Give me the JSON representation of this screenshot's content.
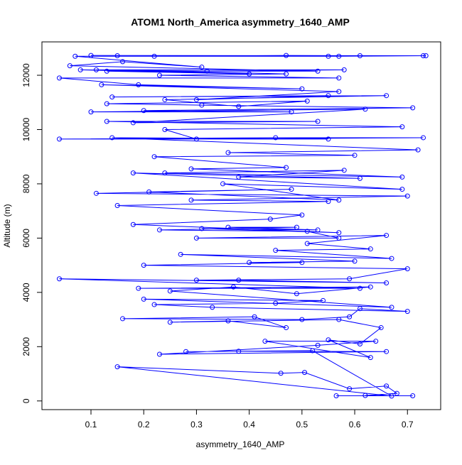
{
  "chart_data": {
    "type": "line",
    "markers": true,
    "title": "ATOM1 North_America asymmetry_1640_AMP",
    "xlabel": "asymmetry_1640_AMP",
    "ylabel": "Altitude (m)",
    "color": "#0000ff",
    "xlim": [
      0.007,
      0.763
    ],
    "ylim": [
      -320,
      13230
    ],
    "xticks": [
      0.1,
      0.2,
      0.3,
      0.4,
      0.5,
      0.6,
      0.7
    ],
    "yticks": [
      0,
      2000,
      4000,
      6000,
      8000,
      10000,
      12000
    ],
    "x": [
      0.565,
      0.71,
      0.62,
      0.68,
      0.66,
      0.59,
      0.505,
      0.46,
      0.15,
      0.67,
      0.52,
      0.28,
      0.38,
      0.66,
      0.23,
      0.53,
      0.64,
      0.43,
      0.63,
      0.55,
      0.61,
      0.65,
      0.57,
      0.25,
      0.36,
      0.47,
      0.41,
      0.16,
      0.5,
      0.59,
      0.61,
      0.7,
      0.33,
      0.22,
      0.45,
      0.54,
      0.2,
      0.67,
      0.25,
      0.37,
      0.49,
      0.63,
      0.19,
      0.61,
      0.04,
      0.66,
      0.38,
      0.3,
      0.59,
      0.7,
      0.2,
      0.5,
      0.4,
      0.6,
      0.27,
      0.67,
      0.45,
      0.63,
      0.51,
      0.66,
      0.3,
      0.57,
      0.51,
      0.23,
      0.49,
      0.36,
      0.53,
      0.31,
      0.57,
      0.18,
      0.44,
      0.5,
      0.15,
      0.55,
      0.29,
      0.7,
      0.11,
      0.48,
      0.21,
      0.57,
      0.35,
      0.69,
      0.18,
      0.61,
      0.38,
      0.58,
      0.24,
      0.69,
      0.29,
      0.47,
      0.22,
      0.6,
      0.36,
      0.72,
      0.14,
      0.55,
      0.04,
      0.45,
      0.73,
      0.3,
      0.24,
      0.69,
      0.13,
      0.53,
      0.18,
      0.62,
      0.1,
      0.48,
      0.2,
      0.71,
      0.31,
      0.13,
      0.51,
      0.38,
      0.24,
      0.66,
      0.14,
      0.55,
      0.3,
      0.57,
      0.12,
      0.5,
      0.19,
      0.04,
      0.57,
      0.23,
      0.47,
      0.11,
      0.58,
      0.32,
      0.08,
      0.4,
      0.13,
      0.53,
      0.06,
      0.16,
      0.31,
      0.07,
      0.55,
      0.22,
      0.47,
      0.61,
      0.1,
      0.73,
      0.15,
      0.57,
      0.735
    ],
    "values": [
      190,
      190,
      200,
      280,
      550,
      450,
      1050,
      1020,
      1260,
      180,
      1850,
      1820,
      1830,
      1820,
      1720,
      2050,
      2200,
      2200,
      1600,
      2250,
      2100,
      2700,
      3000,
      2900,
      2950,
      2700,
      3100,
      3030,
      3000,
      3100,
      3400,
      3300,
      3450,
      3550,
      3600,
      3700,
      3750,
      3450,
      4050,
      4200,
      3950,
      4200,
      4150,
      4150,
      4500,
      4350,
      4450,
      4450,
      4500,
      4870,
      5000,
      5100,
      5100,
      5150,
      5400,
      5250,
      5550,
      5600,
      5800,
      6100,
      6000,
      6000,
      6250,
      6300,
      6400,
      6400,
      6300,
      6350,
      6200,
      6500,
      6700,
      6850,
      7200,
      7350,
      7400,
      7550,
      7650,
      7800,
      7700,
      7400,
      8000,
      7800,
      8400,
      8200,
      8250,
      8500,
      8400,
      8250,
      8550,
      8600,
      9000,
      9050,
      9150,
      9250,
      9700,
      9650,
      9650,
      9700,
      9700,
      9650,
      10000,
      10100,
      10300,
      10300,
      10250,
      10750,
      10650,
      10650,
      10700,
      10800,
      10900,
      10950,
      11050,
      10850,
      11100,
      11250,
      11200,
      11250,
      11100,
      11400,
      11650,
      11500,
      11650,
      11900,
      11900,
      12000,
      12050,
      12200,
      12200,
      12150,
      12200,
      12050,
      12150,
      12150,
      12350,
      12500,
      12300,
      12700,
      12700,
      12700,
      12730,
      12720,
      12730,
      12720,
      12720,
      12700,
      12720
    ]
  }
}
